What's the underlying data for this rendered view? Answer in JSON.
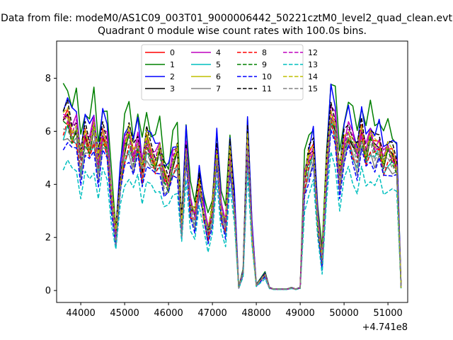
{
  "figure": {
    "suptitle": "Data from file: modeM0/AS1C09_003T01_9000006442_50221cztM0_level2_quad_clean.evt",
    "title": "Quadrant 0 module wise count rates with 100.0s bins.",
    "offset_label": "+4.741e8"
  },
  "chart_data": {
    "type": "line",
    "title": "Quadrant 0 module wise count rates with 100.0s bins.",
    "xlabel": "",
    "ylabel": "",
    "x_offset": 474100000,
    "xlim": [
      43450,
      51450
    ],
    "ylim": [
      -0.45,
      9.4
    ],
    "xticks": [
      44000,
      45000,
      46000,
      47000,
      48000,
      49000,
      50000,
      51000
    ],
    "yticks": [
      0,
      2,
      4,
      6,
      8
    ],
    "grid": false,
    "legend": {
      "placement": "top-center",
      "ncol": 4
    },
    "series": [
      {
        "name": "0",
        "color": "#ff0000",
        "dash": "solid",
        "scale": 1.0,
        "noise": 0.25
      },
      {
        "name": "1",
        "color": "#008000",
        "dash": "solid",
        "scale": 1.18,
        "noise": 0.35
      },
      {
        "name": "2",
        "color": "#0000ff",
        "dash": "solid",
        "scale": 1.1,
        "noise": 0.3
      },
      {
        "name": "3",
        "color": "#000000",
        "dash": "solid",
        "scale": 0.98,
        "noise": 0.25
      },
      {
        "name": "4",
        "color": "#bf00bf",
        "dash": "solid",
        "scale": 1.03,
        "noise": 0.25
      },
      {
        "name": "5",
        "color": "#00bfbf",
        "dash": "solid",
        "scale": 0.92,
        "noise": 0.25
      },
      {
        "name": "6",
        "color": "#bfbf00",
        "dash": "solid",
        "scale": 0.98,
        "noise": 0.25
      },
      {
        "name": "7",
        "color": "#808080",
        "dash": "solid",
        "scale": 0.9,
        "noise": 0.25
      },
      {
        "name": "8",
        "color": "#ff0000",
        "dash": "dashed",
        "scale": 0.93,
        "noise": 0.25
      },
      {
        "name": "9",
        "color": "#008000",
        "dash": "dashed",
        "scale": 0.96,
        "noise": 0.25
      },
      {
        "name": "10",
        "color": "#0000ff",
        "dash": "dashed",
        "scale": 0.86,
        "noise": 0.25
      },
      {
        "name": "11",
        "color": "#000000",
        "dash": "dashed",
        "scale": 1.05,
        "noise": 0.25
      },
      {
        "name": "12",
        "color": "#bf00bf",
        "dash": "dashed",
        "scale": 1.0,
        "noise": 0.25
      },
      {
        "name": "13",
        "color": "#00bfbf",
        "dash": "dashed",
        "scale": 0.74,
        "noise": 0.2
      },
      {
        "name": "14",
        "color": "#bfbf00",
        "dash": "dashed",
        "scale": 1.02,
        "noise": 0.25
      },
      {
        "name": "15",
        "color": "#808080",
        "dash": "dashed",
        "scale": 0.95,
        "noise": 0.25
      }
    ],
    "base_profile": {
      "x": [
        43600,
        43700,
        43800,
        43900,
        44000,
        44100,
        44200,
        44300,
        44400,
        44500,
        44600,
        44700,
        44800,
        44900,
        45000,
        45100,
        45200,
        45300,
        45400,
        45500,
        45600,
        45700,
        45800,
        45900,
        46000,
        46100,
        46200,
        46300,
        46400,
        46500,
        46600,
        46700,
        46800,
        46900,
        47000,
        47100,
        47200,
        47300,
        47400,
        47500,
        47600,
        47700,
        47800,
        47900,
        48000,
        48100,
        48200,
        48300,
        48400,
        48500,
        48600,
        48700,
        48800,
        48900,
        49000,
        49100,
        49200,
        49300,
        49400,
        49500,
        49600,
        49700,
        49800,
        49900,
        50000,
        50100,
        50200,
        50300,
        50400,
        50500,
        50600,
        50700,
        50800,
        50900,
        51000,
        51100,
        51200,
        51300
      ],
      "y": [
        6.4,
        6.6,
        6.0,
        6.2,
        4.9,
        5.9,
        5.5,
        6.2,
        4.8,
        6.0,
        5.6,
        3.6,
        2.1,
        4.1,
        5.4,
        5.9,
        5.1,
        5.7,
        4.6,
        5.7,
        5.2,
        4.9,
        5.3,
        4.3,
        4.1,
        4.9,
        5.2,
        2.4,
        5.4,
        3.2,
        2.8,
        4.1,
        3.0,
        2.2,
        3.0,
        5.3,
        3.0,
        2.5,
        5.2,
        3.2,
        0.1,
        0.7,
        5.8,
        2.2,
        0.2,
        0.4,
        0.6,
        0.1,
        0.05,
        0.05,
        0.05,
        0.05,
        0.1,
        0.05,
        0.1,
        4.2,
        5.0,
        5.4,
        2.6,
        1.1,
        4.6,
        6.8,
        6.3,
        4.3,
        5.6,
        6.1,
        5.6,
        5.1,
        6.1,
        5.2,
        5.8,
        5.4,
        5.6,
        4.9,
        5.3,
        5.1,
        4.8,
        0.1
      ]
    }
  }
}
